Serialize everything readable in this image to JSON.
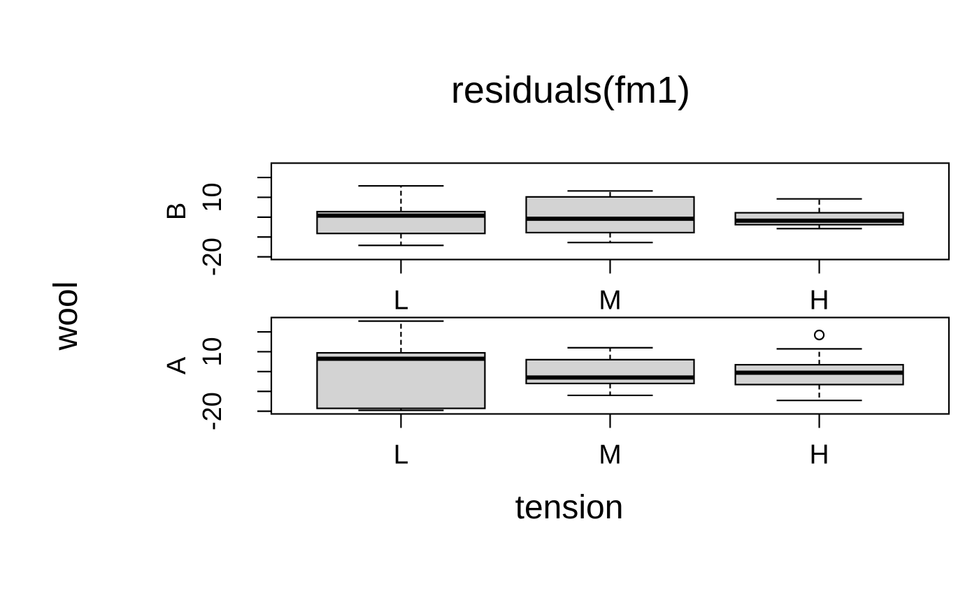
{
  "chart_data": {
    "type": "boxplot",
    "title": "residuals(fm1)",
    "xlabel": "tension",
    "ylabel": "wool",
    "categories": [
      "L",
      "M",
      "H"
    ],
    "ylim": [
      -21.36,
      27.24
    ],
    "yticks": [
      20,
      10,
      0,
      -10,
      -20
    ],
    "ytick_labels_shown": [
      "10",
      "-20"
    ],
    "grid": false,
    "legend": "none",
    "colors": {
      "box_fill": "#d3d3d3",
      "line": "#000000",
      "background": "#ffffff"
    },
    "panels": [
      {
        "label": "B",
        "boxes": [
          {
            "category": "L",
            "whisker_low": -14.22,
            "q1": -8.22,
            "median": 0.78,
            "q3": 2.78,
            "whisker_high": 15.78,
            "outliers": []
          },
          {
            "category": "M",
            "whisker_low": -12.78,
            "q1": -7.78,
            "median": -0.78,
            "q3": 10.22,
            "whisker_high": 13.22,
            "outliers": []
          },
          {
            "category": "H",
            "whisker_low": -5.78,
            "q1": -3.78,
            "median": -1.78,
            "q3": 2.22,
            "whisker_high": 9.22,
            "outliers": []
          }
        ]
      },
      {
        "label": "A",
        "boxes": [
          {
            "category": "L",
            "whisker_low": -19.56,
            "q1": -18.56,
            "median": 6.44,
            "q3": 9.44,
            "whisker_high": 25.44,
            "outliers": []
          },
          {
            "category": "M",
            "whisker_low": -12.0,
            "q1": -6.0,
            "median": -3.0,
            "q3": 6.0,
            "whisker_high": 12.0,
            "outliers": []
          },
          {
            "category": "H",
            "whisker_low": -14.56,
            "q1": -6.56,
            "median": -0.56,
            "q3": 3.44,
            "whisker_high": 11.44,
            "outliers": [
              18.44
            ]
          }
        ]
      }
    ]
  }
}
